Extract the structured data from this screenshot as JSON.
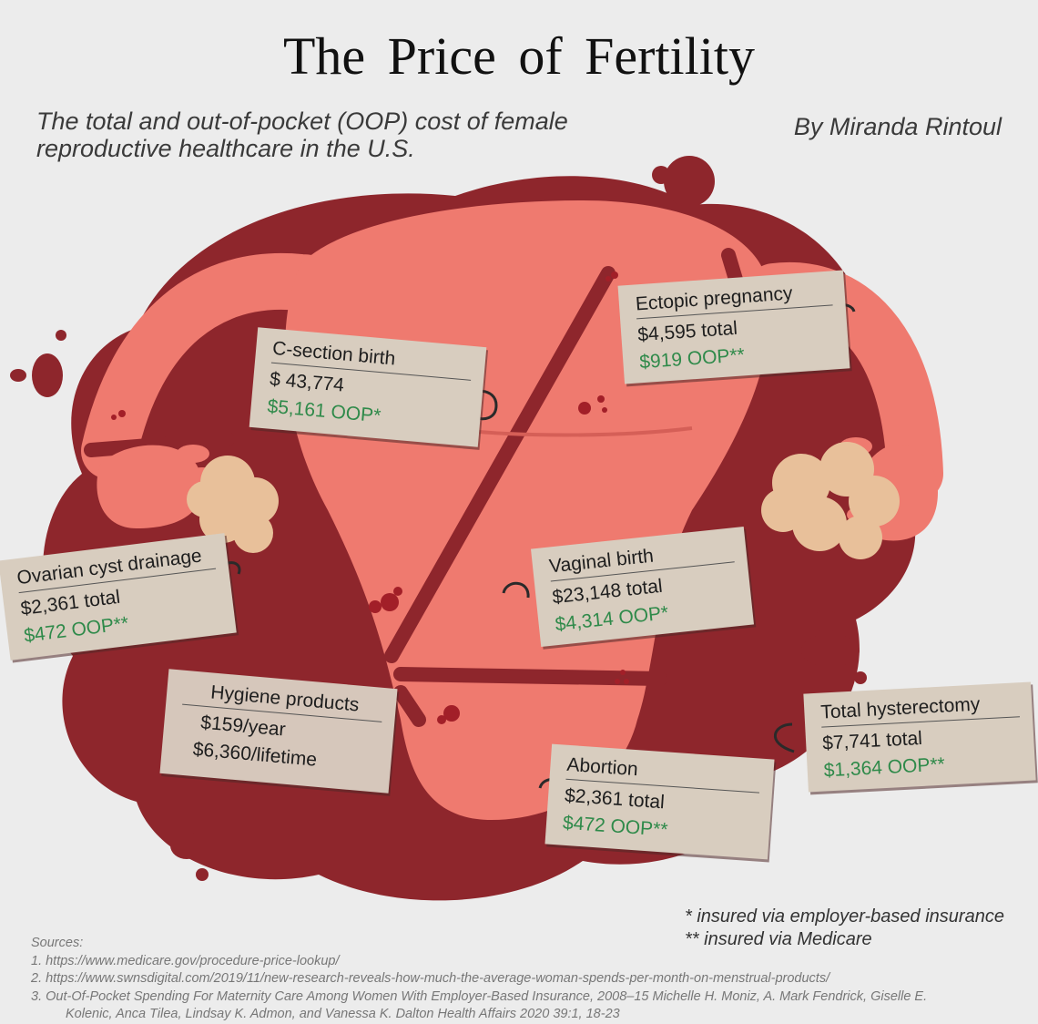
{
  "header": {
    "title": "The Price of Fertility",
    "subtitle": "The total and out-of-pocket (OOP) cost of female reproductive healthcare in the U.S.",
    "byline": "By Miranda Rintoul"
  },
  "colors": {
    "blood": "#8e262c",
    "uterus": "#ef7a6f",
    "tag": "#d8cdbf",
    "oop_text": "#2f8a4a",
    "ovary": "#e8c09a"
  },
  "tags": [
    {
      "name": "C-section birth",
      "total": "$ 43,774",
      "oop": "$5,161 OOP*"
    },
    {
      "name": "Ectopic pregnancy",
      "total": "$4,595 total",
      "oop": "$919 OOP**"
    },
    {
      "name": "Ovarian cyst drainage",
      "total": "$2,361 total",
      "oop": "$472 OOP**"
    },
    {
      "name": "Vaginal birth",
      "total": "$23,148 total",
      "oop": "$4,314 OOP*"
    },
    {
      "name": "Hygiene products",
      "total": "$159/year",
      "oop": "$6,360/lifetime"
    },
    {
      "name": "Total hysterectomy",
      "total": "$7,741 total",
      "oop": "$1,364 OOP**"
    },
    {
      "name": "Abortion",
      "total": "$2,361 total",
      "oop": "$472 OOP**"
    }
  ],
  "notes": {
    "employer": "* insured via employer-based insurance",
    "medicare": "** insured via Medicare"
  },
  "sources": {
    "heading": "Sources:",
    "items": [
      "1. https://www.medicare.gov/procedure-price-lookup/",
      "2. https://www.swnsdigital.com/2019/11/new-research-reveals-how-much-the-average-woman-spends-per-month-on-menstrual-products/",
      "3. Out-Of-Pocket Spending For Maternity Care Among Women With Employer-Based Insurance, 2008–15 Michelle H. Moniz, A. Mark Fendrick, Giselle E.",
      "Kolenic, Anca Tilea, Lindsay K. Admon, and Vanessa K. Dalton Health Affairs 2020 39:1, 18-23"
    ]
  }
}
